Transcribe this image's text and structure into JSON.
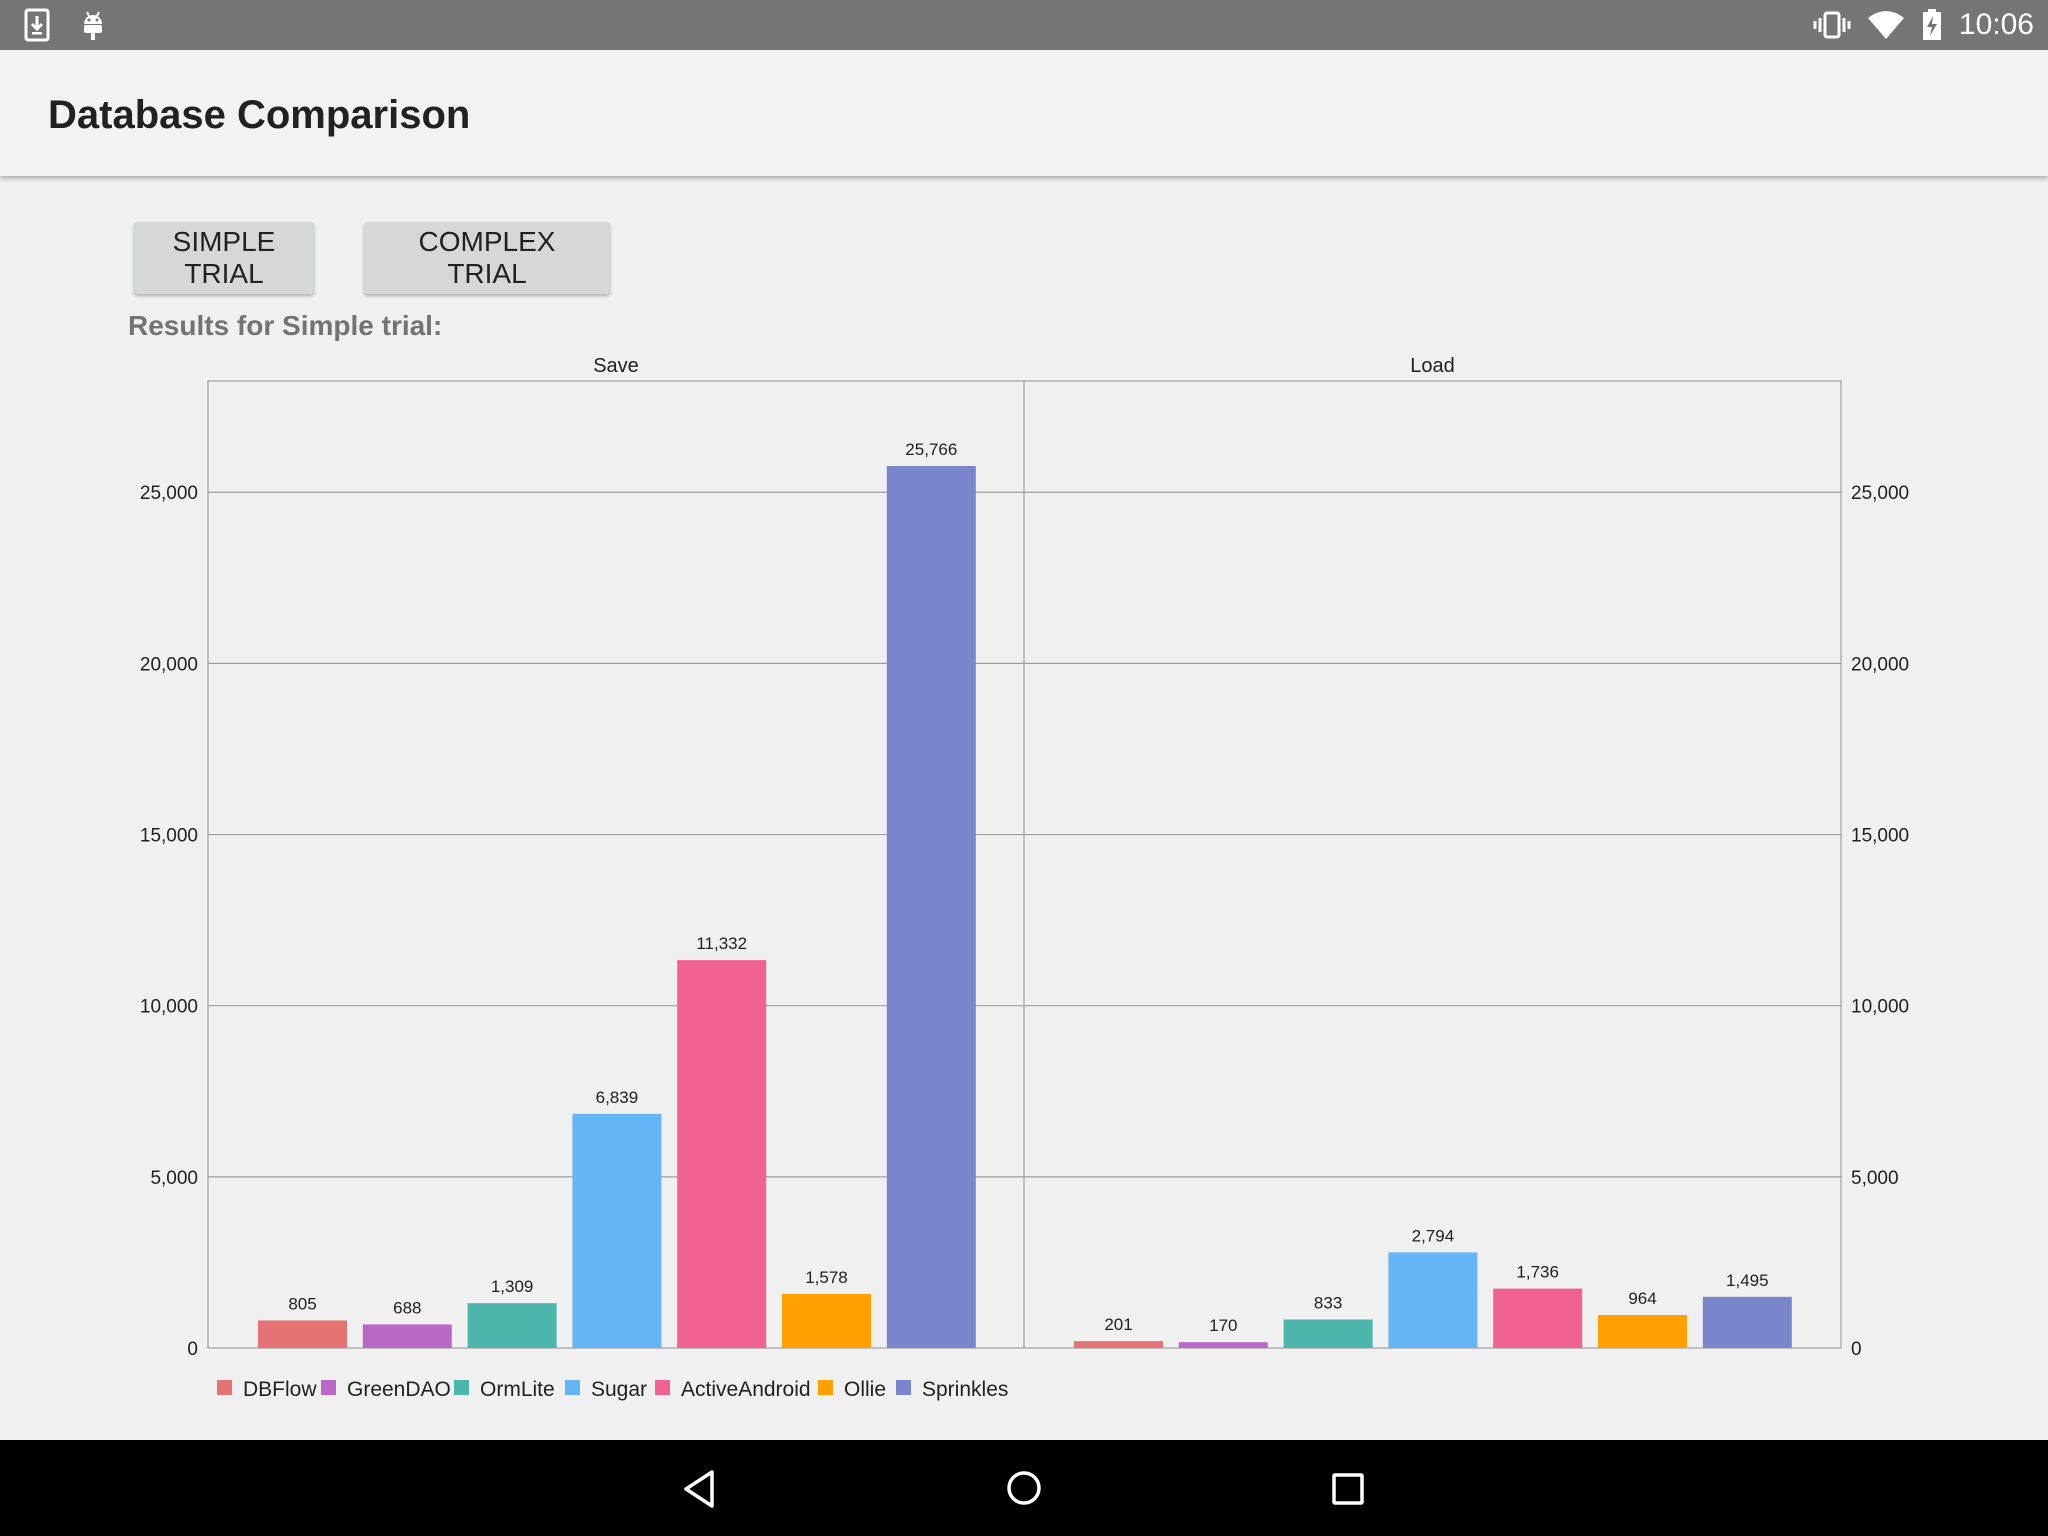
{
  "status_bar": {
    "time": "10:06",
    "left_icons": [
      "download-icon",
      "android-icon"
    ],
    "right_icons": [
      "vibrate-icon",
      "wifi-icon",
      "battery-charging-icon"
    ]
  },
  "app": {
    "title": "Database Comparison"
  },
  "buttons": {
    "simple_label": "SIMPLE TRIAL",
    "complex_label": "COMPLEX TRIAL"
  },
  "results_label": "Results for Simple trial:",
  "colors": {
    "DBFlow": "#e57373",
    "GreenDAO": "#ba68c8",
    "OrmLite": "#4db6ac",
    "Sugar": "#64b5f6",
    "ActiveAndroid": "#f06292",
    "Ollie": "#ffa000",
    "Sprinkles": "#7986cb"
  },
  "chart_data": {
    "type": "bar",
    "panels": [
      "Save",
      "Load"
    ],
    "series": [
      {
        "name": "DBFlow",
        "values": [
          805,
          201
        ]
      },
      {
        "name": "GreenDAO",
        "values": [
          688,
          170
        ]
      },
      {
        "name": "OrmLite",
        "values": [
          1309,
          833
        ]
      },
      {
        "name": "Sugar",
        "values": [
          6839,
          2794
        ]
      },
      {
        "name": "ActiveAndroid",
        "values": [
          11332,
          1736
        ]
      },
      {
        "name": "Ollie",
        "values": [
          1578,
          964
        ]
      },
      {
        "name": "Sprinkles",
        "values": [
          25766,
          1495
        ]
      }
    ],
    "value_labels": {
      "Save": [
        "805",
        "688",
        "1,309",
        "6,839",
        "11,332",
        "1,578",
        "25,766"
      ],
      "Load": [
        "201",
        "170",
        "833",
        "2,794",
        "1,736",
        "964",
        "1,495"
      ]
    },
    "yticks": [
      0,
      5000,
      10000,
      15000,
      20000,
      25000
    ],
    "ytick_labels": [
      "0",
      "5,000",
      "10,000",
      "15,000",
      "20,000",
      "25,000"
    ],
    "ylim": [
      0,
      28250
    ],
    "grid": true,
    "legend_position": "bottom-left",
    "axes": "left and right"
  }
}
